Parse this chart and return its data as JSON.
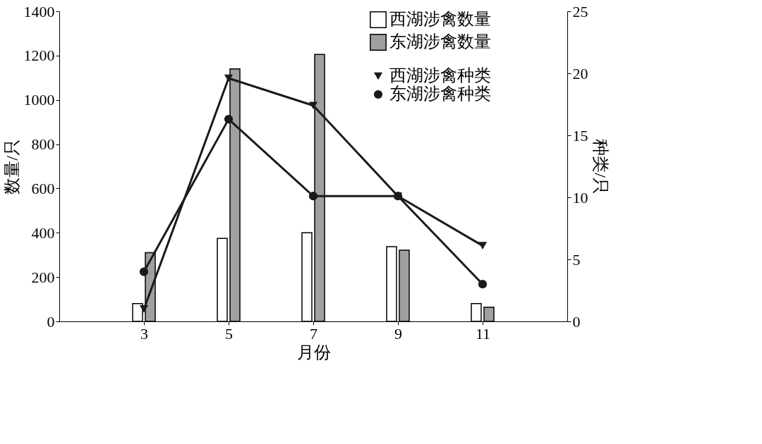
{
  "chart_data": {
    "type": "bar",
    "xlabel": "月份",
    "ylabel": "数量/只",
    "y2label": "种类/只",
    "x": [
      3,
      5,
      7,
      9,
      11
    ],
    "xlim": [
      1,
      13
    ],
    "xticks": [
      3,
      5,
      7,
      9,
      11
    ],
    "ylim": [
      0,
      1400
    ],
    "yticks": [
      0,
      200,
      400,
      600,
      800,
      1000,
      1200,
      1400
    ],
    "y2lim": [
      0,
      25
    ],
    "y2ticks": [
      0,
      5,
      10,
      15,
      20,
      25
    ],
    "grid": false,
    "legend": "top right",
    "series": [
      {
        "name": "西湖涉禽数量",
        "color": "#ffffff",
        "values": [
          80,
          375,
          400,
          337,
          80
        ]
      },
      {
        "name": "东湖涉禽数量",
        "color": "#a0a0a0",
        "values": [
          310,
          1140,
          1205,
          321,
          64
        ]
      },
      {
        "name": "西湖涉禽种类",
        "type": "line",
        "axis": "y2",
        "marker": "triangle",
        "color": "#1a1a1a",
        "values": [
          1,
          19.6,
          17.4,
          10.1,
          6.1
        ]
      },
      {
        "name": "东湖涉禽种类",
        "type": "line",
        "axis": "y2",
        "marker": "circle",
        "color": "#1a1a1a",
        "values": [
          4,
          16.3,
          10.1,
          10.1,
          3
        ]
      }
    ]
  }
}
